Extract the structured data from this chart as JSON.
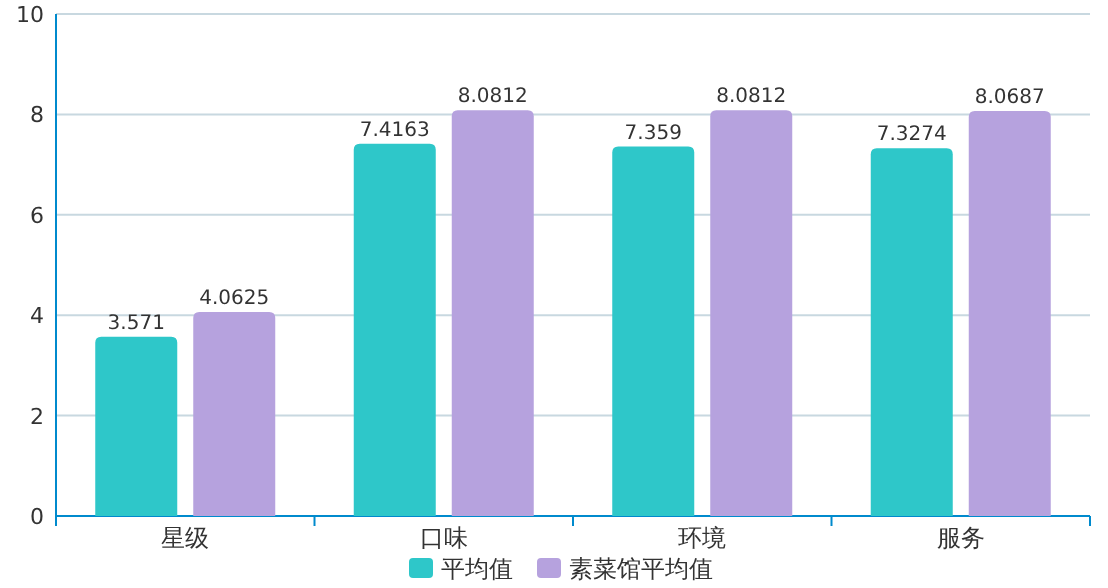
{
  "chart_data": {
    "type": "bar",
    "categories": [
      "星级",
      "口味",
      "环境",
      "服务"
    ],
    "series": [
      {
        "name": "平均值",
        "color": "#2ec7c9",
        "values": [
          3.571,
          7.4163,
          7.359,
          7.3274
        ]
      },
      {
        "name": "素菜馆平均值",
        "color": "#b6a2de",
        "values": [
          4.0625,
          8.0812,
          8.0812,
          8.0687
        ]
      }
    ],
    "ylim": [
      0,
      10
    ],
    "yticks": [
      0,
      2,
      4,
      6,
      8,
      10
    ],
    "grid": "y",
    "legend": "bottom",
    "data_labels": true
  }
}
